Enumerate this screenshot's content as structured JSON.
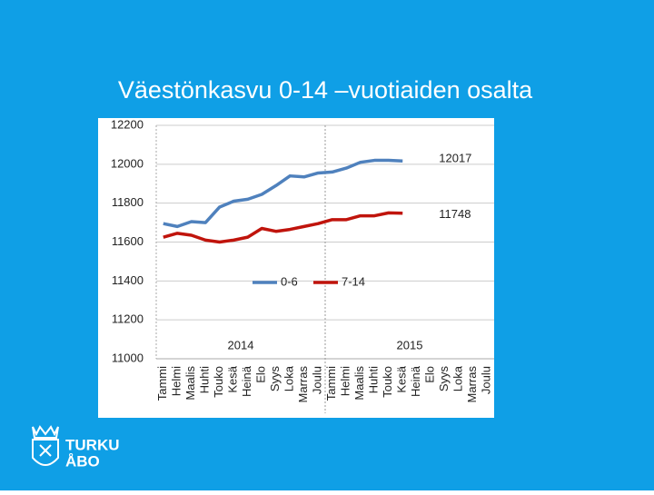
{
  "chart_data": {
    "type": "line",
    "title": "Väestönkasvu 0-14 –vuotiaiden osalta",
    "categories": [
      "Tammi",
      "Helmi",
      "Maalis",
      "Huhti",
      "Touko",
      "Kesä",
      "Heinä",
      "Elo",
      "Syys",
      "Loka",
      "Marras",
      "Joulu",
      "Tammi",
      "Helmi",
      "Maalis",
      "Huhti",
      "Touko",
      "Kesä",
      "Heinä",
      "Elo",
      "Syys",
      "Loka",
      "Marras",
      "Joulu"
    ],
    "series": [
      {
        "name": "0-6",
        "color": "#4f81bd",
        "values": [
          11695,
          11680,
          11705,
          11700,
          11780,
          11810,
          11820,
          11845,
          11890,
          11940,
          11935,
          11955,
          11960,
          11980,
          12010,
          12020,
          12020,
          12017,
          null,
          null,
          null,
          null,
          null,
          null
        ]
      },
      {
        "name": "7-14",
        "color": "#c0140c",
        "values": [
          11625,
          11645,
          11635,
          11610,
          11600,
          11610,
          11625,
          11670,
          11655,
          11665,
          11680,
          11695,
          11715,
          11715,
          11735,
          11735,
          11750,
          11748,
          null,
          null,
          null,
          null,
          null,
          null
        ]
      }
    ],
    "annotations": [
      "2014",
      "2015"
    ],
    "ylim": [
      11000,
      12200
    ],
    "yticks": [
      11000,
      11200,
      11400,
      11600,
      11800,
      12000,
      12200
    ],
    "grid": true,
    "legend": "center"
  },
  "logo": {
    "line1": "TURKU",
    "line2": "ÅBO"
  }
}
